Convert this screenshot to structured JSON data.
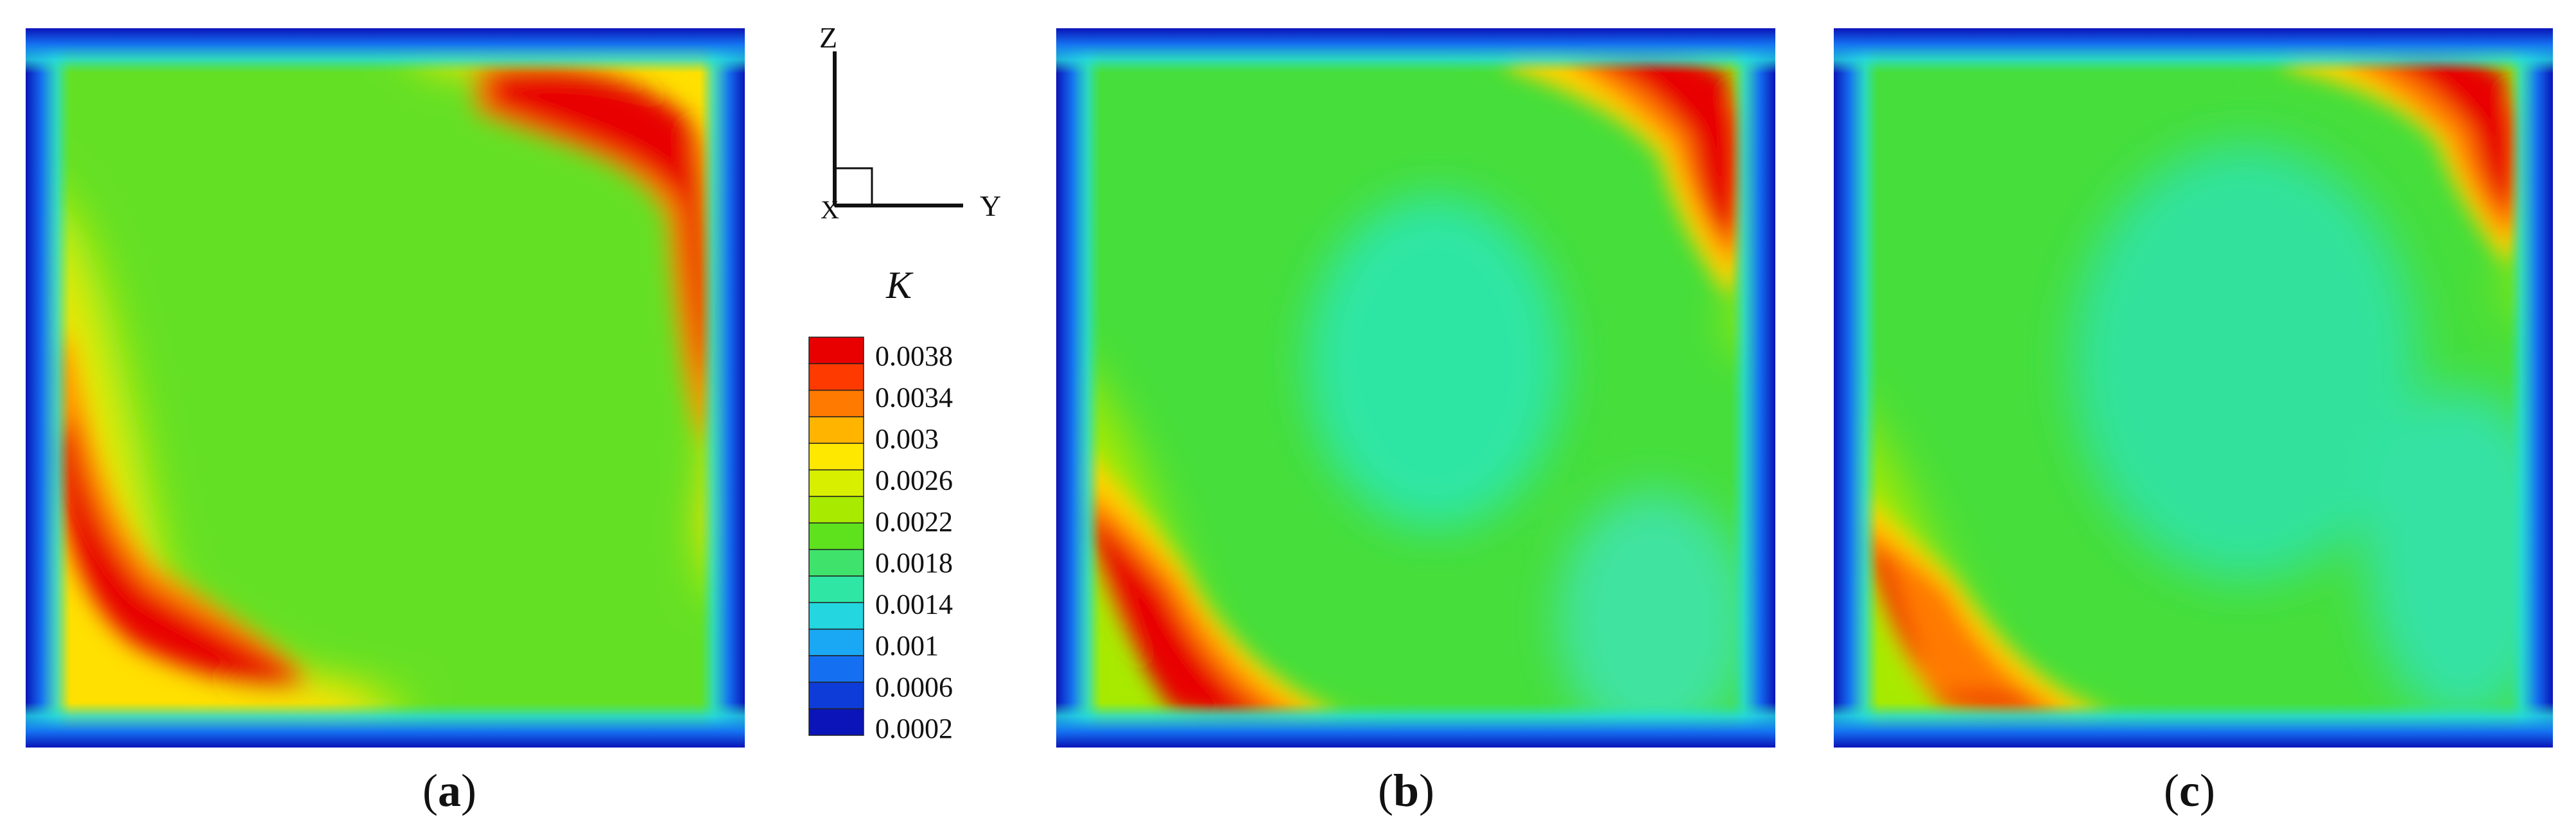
{
  "panels": [
    {
      "id": "a",
      "caption_open": "(",
      "caption_letter": "a",
      "caption_close": ")"
    },
    {
      "id": "b",
      "caption_open": "(",
      "caption_letter": "b",
      "caption_close": ")"
    },
    {
      "id": "c",
      "caption_open": "(",
      "caption_letter": "c",
      "caption_close": ")"
    }
  ],
  "axes": {
    "vertical": "Z",
    "horizontal": "Y",
    "origin": "X"
  },
  "legend": {
    "title": "K",
    "labels": [
      "0.0038",
      "0.0034",
      "0.003",
      "0.0026",
      "0.0022",
      "0.0018",
      "0.0014",
      "0.001",
      "0.0006",
      "0.0002"
    ],
    "colors": [
      "#e80000",
      "#ff3a00",
      "#ff7a00",
      "#ffb400",
      "#ffe800",
      "#d8f000",
      "#a8ea00",
      "#5ee21e",
      "#3fe36b",
      "#2fe6a4",
      "#24d6df",
      "#1aa8f4",
      "#1470f0",
      "#0d3cd8",
      "#0a14b8"
    ]
  },
  "colormap": {
    "background": "#46de2c",
    "edge": "#0a14b8"
  }
}
